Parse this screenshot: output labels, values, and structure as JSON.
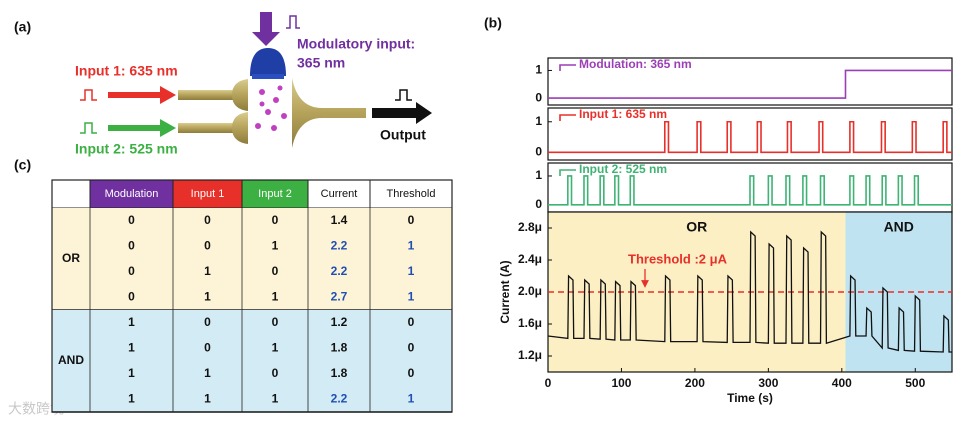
{
  "panel_a": {
    "label": "(a)",
    "input1": "Input 1: 635 nm",
    "input2": "Input 2: 525 nm",
    "modulatory_input": [
      "Modulatory input:",
      "365 nm"
    ],
    "output": "Output"
  },
  "panel_b": {
    "label": "(b)"
  },
  "chart_data": [
    {
      "type": "line",
      "xlim": [
        0,
        550
      ],
      "ylim": [
        -0.25,
        1.45
      ],
      "yticks": [
        0,
        1
      ],
      "series": [
        {
          "name": "Modulation: 365 nm",
          "color": "#9b3fb5",
          "x": [
            0,
            405,
            405,
            550
          ],
          "values": [
            0,
            0,
            1,
            1
          ]
        }
      ]
    },
    {
      "type": "line",
      "xlim": [
        0,
        550
      ],
      "ylim": [
        -0.25,
        1.45
      ],
      "yticks": [
        0,
        1
      ],
      "series": [
        {
          "name": "Input 1: 635 nm",
          "color": "#e8302a",
          "x": [
            0,
            159,
            159,
            164,
            164,
            203,
            203,
            208,
            208,
            244,
            244,
            249,
            249,
            285,
            285,
            290,
            290,
            326,
            326,
            331,
            331,
            369,
            369,
            374,
            374,
            411,
            411,
            416,
            416,
            454,
            454,
            459,
            459,
            496,
            496,
            501,
            501,
            538,
            538,
            543,
            543,
            550
          ],
          "values": [
            0,
            0,
            1,
            1,
            0,
            0,
            1,
            1,
            0,
            0,
            1,
            1,
            0,
            0,
            1,
            1,
            0,
            0,
            1,
            1,
            0,
            0,
            1,
            1,
            0,
            0,
            1,
            1,
            0,
            0,
            1,
            1,
            0,
            0,
            1,
            1,
            0,
            0,
            1,
            1,
            0,
            0
          ]
        }
      ]
    },
    {
      "type": "line",
      "xlim": [
        0,
        550
      ],
      "ylim": [
        -0.25,
        1.45
      ],
      "yticks": [
        0,
        1
      ],
      "series": [
        {
          "name": "Input 2: 525 nm",
          "color": "#3fb374",
          "x": [
            0,
            27,
            27,
            32,
            32,
            49,
            49,
            54,
            54,
            71,
            71,
            76,
            76,
            91,
            91,
            96,
            96,
            112,
            112,
            117,
            117,
            275,
            275,
            280,
            280,
            300,
            300,
            305,
            305,
            324,
            324,
            329,
            329,
            347,
            347,
            352,
            352,
            371,
            371,
            376,
            376,
            411,
            411,
            416,
            416,
            433,
            433,
            438,
            438,
            455,
            455,
            460,
            460,
            477,
            477,
            482,
            482,
            499,
            499,
            504,
            504,
            550
          ],
          "values": [
            0,
            0,
            1,
            1,
            0,
            0,
            1,
            1,
            0,
            0,
            1,
            1,
            0,
            0,
            1,
            1,
            0,
            0,
            1,
            1,
            0,
            0,
            1,
            1,
            0,
            0,
            1,
            1,
            0,
            0,
            1,
            1,
            0,
            0,
            1,
            1,
            0,
            0,
            1,
            1,
            0,
            0,
            1,
            1,
            0,
            0,
            1,
            1,
            0,
            0,
            1,
            1,
            0,
            0,
            1,
            1,
            0,
            0,
            1,
            1,
            0,
            0
          ]
        }
      ]
    },
    {
      "type": "line",
      "xlim": [
        0,
        550
      ],
      "ylim": [
        1e-06,
        3e-06
      ],
      "xticks": [
        0,
        100,
        200,
        300,
        400,
        500
      ],
      "yticks": [
        {
          "value": 1.2e-06,
          "label": "1.2μ"
        },
        {
          "value": 1.6e-06,
          "label": "1.6μ"
        },
        {
          "value": 2e-06,
          "label": "2.0μ"
        },
        {
          "value": 2.4e-06,
          "label": "2.4μ"
        },
        {
          "value": 2.8e-06,
          "label": "2.8μ"
        }
      ],
      "xlabel": "Time (s)",
      "ylabel": "Current (A)",
      "regions": [
        {
          "label": "OR",
          "from": 0,
          "to": 405,
          "color": "#fcefc4"
        },
        {
          "label": "AND",
          "from": 405,
          "to": 550,
          "color": "#bfe3f1"
        }
      ],
      "threshold": {
        "value": 2e-06,
        "label": "Threshold :2 μA",
        "color": "#e8302a"
      },
      "series": [
        {
          "color": "#111111",
          "x": [
            0,
            27,
            28,
            34,
            35,
            49,
            50,
            56,
            57,
            71,
            72,
            78,
            79,
            91,
            92,
            98,
            99,
            112,
            113,
            119,
            120,
            159,
            160,
            166,
            167,
            203,
            204,
            210,
            211,
            244,
            245,
            251,
            252,
            275,
            276,
            282,
            283,
            300,
            301,
            307,
            308,
            324,
            325,
            331,
            332,
            347,
            348,
            354,
            355,
            371,
            372,
            378,
            379,
            411,
            412,
            418,
            419,
            433,
            434,
            440,
            441,
            455,
            456,
            462,
            463,
            477,
            478,
            484,
            485,
            499,
            500,
            506,
            507,
            538,
            539,
            545,
            546,
            550
          ],
          "values": [
            1.45e-06,
            1.42e-06,
            2.2e-06,
            2.15e-06,
            1.42e-06,
            1.42e-06,
            2.15e-06,
            2.1e-06,
            1.42e-06,
            1.41e-06,
            2.15e-06,
            2.1e-06,
            1.41e-06,
            1.4e-06,
            2.13e-06,
            2.08e-06,
            1.4e-06,
            1.4e-06,
            2.13e-06,
            2.08e-06,
            1.4e-06,
            1.38e-06,
            2.2e-06,
            2.15e-06,
            1.38e-06,
            1.38e-06,
            2.2e-06,
            2.15e-06,
            1.38e-06,
            1.37e-06,
            2.2e-06,
            2.15e-06,
            1.37e-06,
            1.37e-06,
            2.75e-06,
            2.7e-06,
            1.37e-06,
            1.36e-06,
            2.6e-06,
            2.55e-06,
            1.36e-06,
            1.36e-06,
            2.7e-06,
            2.65e-06,
            1.36e-06,
            1.36e-06,
            2.55e-06,
            2.5e-06,
            1.36e-06,
            1.36e-06,
            2.75e-06,
            2.7e-06,
            1.36e-06,
            1.45e-06,
            2.2e-06,
            2.15e-06,
            1.45e-06,
            1.45e-06,
            1.8e-06,
            1.75e-06,
            1.45e-06,
            1.3e-06,
            2.05e-06,
            2e-06,
            1.3e-06,
            1.27e-06,
            1.8e-06,
            1.75e-06,
            1.27e-06,
            1.26e-06,
            1.95e-06,
            1.9e-06,
            1.26e-06,
            1.25e-06,
            1.7e-06,
            1.65e-06,
            1.25e-06,
            1.25e-06
          ]
        }
      ]
    }
  ],
  "panel_c": {
    "label": "(c)",
    "table": {
      "columns": [
        "Modulation",
        "Input 1",
        "Input 2",
        "Current",
        "Threshold"
      ],
      "groups": [
        {
          "label": "OR",
          "rows": [
            [
              0,
              0,
              0,
              1.4,
              0
            ],
            [
              0,
              0,
              1,
              2.2,
              1
            ],
            [
              0,
              1,
              0,
              2.2,
              1
            ],
            [
              0,
              1,
              1,
              2.7,
              1
            ]
          ]
        },
        {
          "label": "AND",
          "rows": [
            [
              1,
              0,
              0,
              1.2,
              0
            ],
            [
              1,
              0,
              1,
              1.8,
              0
            ],
            [
              1,
              1,
              0,
              1.8,
              0
            ],
            [
              1,
              1,
              1,
              2.2,
              1
            ]
          ]
        }
      ]
    }
  },
  "watermark": "大数跨境"
}
